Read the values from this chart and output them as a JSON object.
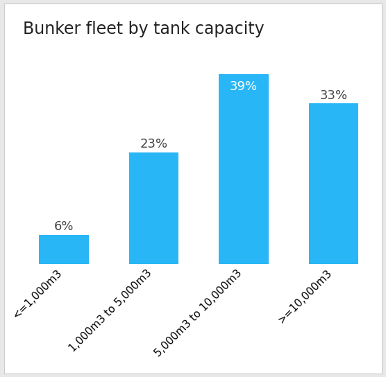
{
  "title": "Bunker fleet by tank capacity",
  "categories": [
    "<=1,000m3",
    "1,000m3 to 5,000m3",
    "5,000m3 to 10,000m3",
    ">=10,000m3"
  ],
  "values": [
    6,
    23,
    39,
    33
  ],
  "bar_color": "#29B6F6",
  "label_colors": [
    "#444444",
    "#444444",
    "#ffffff",
    "#444444"
  ],
  "label_inside": [
    false,
    false,
    true,
    false
  ],
  "title_fontsize": 17,
  "label_fontsize": 13,
  "tick_fontsize": 11,
  "background_color": "#e8e8e8",
  "axes_background": "#ffffff",
  "bar_width": 0.55,
  "ylim": [
    0,
    45
  ]
}
